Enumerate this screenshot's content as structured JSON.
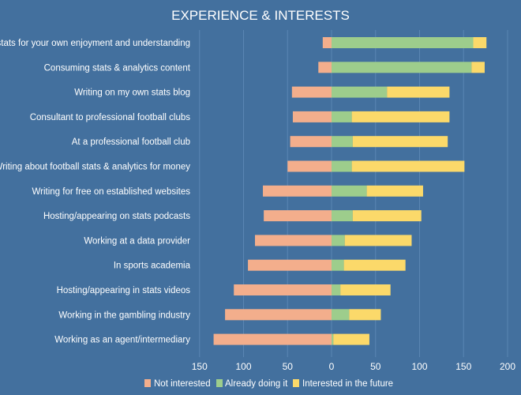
{
  "chart_data": {
    "type": "bar",
    "orientation": "horizontal-diverging-stacked",
    "title": "EXPERIENCE & INTERESTS",
    "categories": [
      "Using stats for your own enjoyment and understanding",
      "Consuming stats & analytics content",
      "Writing on my own stats blog",
      "Consultant to professional football clubs",
      "At a professional football club",
      "Writing about football stats & analytics for money",
      "Writing for free on established websites",
      "Hosting/appearing on stats podcasts",
      "Working at a data provider",
      "In sports academia",
      "Hosting/appearing in stats videos",
      "Working in the gambling industry",
      "Working as an agent/intermediary"
    ],
    "series": [
      {
        "name": "Not interested",
        "color": "#f3ae8c",
        "values": [
          10,
          15,
          45,
          44,
          47,
          50,
          78,
          77,
          87,
          95,
          111,
          121,
          134
        ]
      },
      {
        "name": "Already doing it",
        "color": "#9dcd8c",
        "values": [
          161,
          159,
          63,
          23,
          24,
          23,
          40,
          24,
          15,
          14,
          10,
          20,
          2
        ]
      },
      {
        "name": "Interested in the future",
        "color": "#fbd96a",
        "values": [
          15,
          15,
          71,
          111,
          108,
          128,
          64,
          78,
          76,
          70,
          57,
          36,
          41
        ]
      }
    ],
    "xlim": [
      -150,
      200
    ],
    "xticks": [
      -150,
      -100,
      -50,
      0,
      50,
      100,
      150,
      200
    ],
    "xtick_labels": [
      "150",
      "100",
      "50",
      "0",
      "50",
      "100",
      "150",
      "200"
    ],
    "legend_position": "bottom-center",
    "xlabel": "",
    "ylabel": ""
  }
}
